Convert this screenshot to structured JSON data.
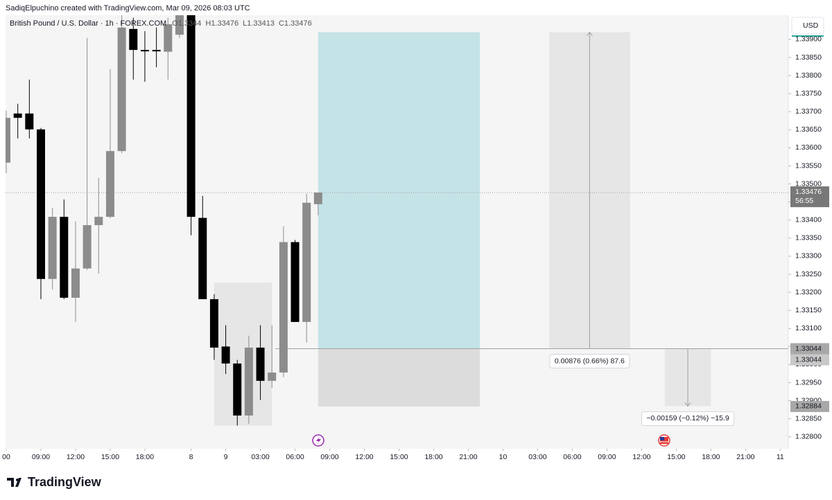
{
  "header": {
    "credit": "SadiqElpuchino created with TradingView.com, Mar 09, 2026 08:03 UTC"
  },
  "chart_data": {
    "type": "candlestick",
    "title": "British Pound / U.S. Dollar · 1h · FOREX.COM",
    "ohlc_legend": [
      "O1.3344",
      "H1.33476",
      "L1.33413",
      "C1.33476"
    ],
    "currency": "USD",
    "categories": [
      null,
      null,
      null,
      null,
      null,
      null,
      null,
      null,
      null,
      null,
      null,
      null,
      null,
      null,
      null,
      null,
      null,
      null,
      null,
      null,
      null,
      null,
      null,
      null,
      null,
      null,
      null,
      null
    ],
    "open": [
      1.33559,
      1.33695,
      1.33695,
      1.33651,
      1.33237,
      1.33409,
      1.33185,
      1.33266,
      1.33386,
      1.33409,
      1.33591,
      1.33929,
      1.33871,
      1.33871,
      1.33866,
      1.33913,
      1.3397,
      1.33406,
      1.33181,
      1.3305,
      1.33003,
      1.32859,
      1.33047,
      1.32955,
      1.32978,
      1.33339,
      1.33118,
      1.33444
    ],
    "high": [
      1.33703,
      1.33722,
      1.33789,
      1.33655,
      1.33434,
      1.33457,
      1.33396,
      1.33904,
      1.33517,
      1.33818,
      1.33985,
      1.3396,
      1.33923,
      1.33933,
      1.3396,
      1.33985,
      1.3399,
      1.33467,
      1.33195,
      1.33109,
      1.33013,
      1.3308,
      1.33109,
      1.33109,
      1.33383,
      1.33345,
      1.33473,
      1.33476
    ],
    "low": [
      1.3353,
      1.33626,
      1.33626,
      1.33181,
      1.33208,
      1.33181,
      1.33118,
      1.33262,
      1.33252,
      1.33405,
      1.33585,
      1.33789,
      1.33783,
      1.33823,
      1.33789,
      1.33904,
      1.33358,
      1.33181,
      1.33013,
      1.32974,
      1.32831,
      1.32836,
      1.32902,
      1.32936,
      1.32965,
      1.33118,
      1.33061,
      1.33413
    ],
    "close": [
      1.33683,
      1.33683,
      1.33651,
      1.33237,
      1.33409,
      1.33185,
      1.33266,
      1.33386,
      1.33409,
      1.33591,
      1.33933,
      1.33871,
      1.33867,
      1.33867,
      1.33942,
      1.3397,
      1.33409,
      1.33181,
      1.33047,
      1.33003,
      1.32859,
      1.33047,
      1.32955,
      1.32978,
      1.33339,
      1.33118,
      1.33448,
      1.33476
    ],
    "up_color": "#8c8c8c",
    "down_color": "#000000",
    "xlim": [
      -0.06,
      67.7
    ],
    "xticks": [
      {
        "value": 0,
        "label": "00"
      },
      {
        "value": 3,
        "label": "09:00"
      },
      {
        "value": 6,
        "label": "12:00"
      },
      {
        "value": 9,
        "label": "15:00"
      },
      {
        "value": 12,
        "label": "18:00"
      },
      {
        "value": 16,
        "label": "8"
      },
      {
        "value": 19,
        "label": "9"
      },
      {
        "value": 22,
        "label": "03:00"
      },
      {
        "value": 25,
        "label": "06:00"
      },
      {
        "value": 28,
        "label": "09:00"
      },
      {
        "value": 31,
        "label": "12:00"
      },
      {
        "value": 34,
        "label": "15:00"
      },
      {
        "value": 37,
        "label": "18:00"
      },
      {
        "value": 40,
        "label": "21:00"
      },
      {
        "value": 43,
        "label": "10"
      },
      {
        "value": 46,
        "label": "03:00"
      },
      {
        "value": 49,
        "label": "06:00"
      },
      {
        "value": 52,
        "label": "09:00"
      },
      {
        "value": 55,
        "label": "12:00"
      },
      {
        "value": 58,
        "label": "15:00"
      },
      {
        "value": 61,
        "label": "18:00"
      },
      {
        "value": 64,
        "label": "21:00"
      },
      {
        "value": 67,
        "label": "11"
      }
    ],
    "ylim": [
      1.32767,
      1.33967
    ],
    "yticks": [
      {
        "value": 1.328,
        "label": "1.32800"
      },
      {
        "value": 1.3285,
        "label": "1.32850"
      },
      {
        "value": 1.329,
        "label": "1.32900"
      },
      {
        "value": 1.3295,
        "label": "1.32950"
      },
      {
        "value": 1.33,
        "label": "1.33000"
      },
      {
        "value": 1.3305,
        "label": "1.33050"
      },
      {
        "value": 1.331,
        "label": "1.33100"
      },
      {
        "value": 1.3315,
        "label": "1.33150"
      },
      {
        "value": 1.332,
        "label": "1.33200"
      },
      {
        "value": 1.3325,
        "label": "1.33250"
      },
      {
        "value": 1.333,
        "label": "1.33300"
      },
      {
        "value": 1.3335,
        "label": "1.33350"
      },
      {
        "value": 1.334,
        "label": "1.33400"
      },
      {
        "value": 1.3345,
        "label": "1.33450"
      },
      {
        "value": 1.335,
        "label": "1.33500"
      },
      {
        "value": 1.3355,
        "label": "1.33550"
      },
      {
        "value": 1.336,
        "label": "1.33600"
      },
      {
        "value": 1.3365,
        "label": "1.33650"
      },
      {
        "value": 1.337,
        "label": "1.33700"
      },
      {
        "value": 1.3375,
        "label": "1.33750"
      },
      {
        "value": 1.338,
        "label": "1.33800"
      },
      {
        "value": 1.3385,
        "label": "1.33850"
      },
      {
        "value": 1.339,
        "label": "1.33900"
      }
    ],
    "last_price": {
      "value": 1.33476,
      "label": "1.33476",
      "countdown": "56:55"
    },
    "price_labels": [
      {
        "value": 1.33044,
        "label": "1.33044"
      },
      {
        "value": 1.33044,
        "label": "1.33044"
      },
      {
        "value": 1.32884,
        "label": "1.32884"
      }
    ],
    "horizontal_line": {
      "price": 1.33044,
      "start": 23.3
    },
    "rectangle": {
      "start": 18,
      "end": 23,
      "top": 1.33227,
      "bottom": 1.32831
    },
    "position": {
      "start": 27,
      "end": 41,
      "entry": 1.33044,
      "target": 1.3392,
      "stop": 1.32884
    },
    "measures": [
      {
        "start": 47,
        "end": 54,
        "from": 1.33044,
        "to": 1.3392,
        "label": "0.00876 (0.66%) 87.6"
      },
      {
        "start": 57,
        "end": 61,
        "from": 1.33044,
        "to": 1.32885,
        "label": "−0.00159 (−0.12%) −15.9"
      }
    ]
  },
  "footer": {
    "logo": "TradingView"
  }
}
